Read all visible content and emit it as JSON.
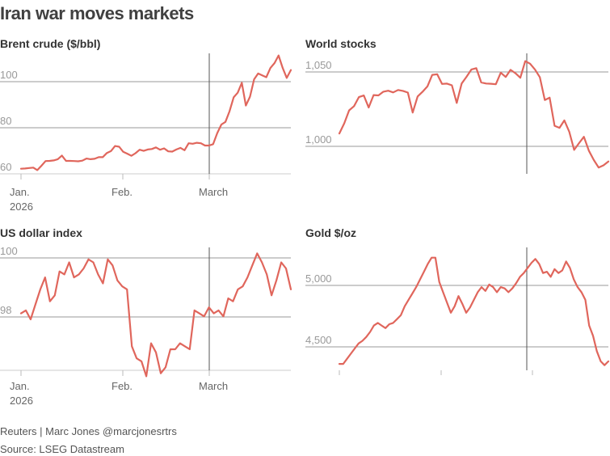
{
  "title": "Iran war moves markets",
  "footer": {
    "credit": "Reuters | Marc Jones @marcjonesrtrs",
    "source": "Source: LSEG Datastream"
  },
  "colors": {
    "line": "#e0665c",
    "grid": "#999999",
    "marker": "#555555"
  },
  "chart_data": [
    {
      "type": "line",
      "title": "Brent crude ($/bbl)",
      "yticks": [
        60,
        80,
        100
      ],
      "ylim": [
        59,
        111
      ],
      "x_labels": [
        "Jan.",
        "2026",
        "Feb.",
        "March"
      ],
      "event_marker": "March 1",
      "values": [
        61.2,
        61.3,
        61.5,
        61.7,
        60.6,
        62.5,
        64.5,
        64.6,
        64.8,
        65.3,
        66.9,
        64.6,
        64.6,
        64.5,
        64.4,
        64.7,
        65.6,
        65.3,
        65.5,
        66.2,
        66.2,
        68,
        68.8,
        71,
        70.7,
        68.5,
        67.7,
        66.8,
        67.9,
        69.4,
        68.9,
        69.5,
        69.7,
        70.4,
        69.4,
        70,
        68.7,
        68.6,
        69.5,
        70.2,
        69.2,
        72.2,
        72,
        72.4,
        72.2,
        71.2,
        71.2,
        71.8,
        76.6,
        80.3,
        81.4,
        86,
        92,
        94,
        98.3,
        88.5,
        92.3,
        99.8,
        102.3,
        101.5,
        100.7,
        104.7,
        106.8,
        110.1,
        104.7,
        100.4,
        103.8
      ]
    },
    {
      "type": "line",
      "title": "World stocks",
      "yticks": [
        1000,
        1050
      ],
      "ylim": [
        985,
        1063
      ],
      "x_labels": [],
      "event_marker": "March 1",
      "values": [
        1011.1,
        1017.7,
        1026.1,
        1028.8,
        1034.7,
        1035.7,
        1027.9,
        1036,
        1035.8,
        1038.2,
        1038.8,
        1037.7,
        1039.3,
        1038.7,
        1037.6,
        1024.7,
        1035.1,
        1038.1,
        1041.6,
        1049.1,
        1049.5,
        1043.2,
        1043.4,
        1042.3,
        1030.9,
        1043.5,
        1047.8,
        1052.6,
        1053.4,
        1044.2,
        1043.5,
        1043.3,
        1043,
        1050.5,
        1047.7,
        1052.3,
        1050.1,
        1047.2,
        1058,
        1056.3,
        1052.5,
        1047.5,
        1032.8,
        1034.3,
        1016.1,
        1014.8,
        1019.6,
        1012.2,
        1000.5,
        1004.9,
        1009,
        1000,
        994.1,
        989.1,
        990.5,
        993
      ]
    },
    {
      "type": "line",
      "title": "US dollar index",
      "yticks": [
        98,
        100
      ],
      "ylim": [
        96.4,
        100.5
      ],
      "x_labels": [
        "Jan.",
        "2026",
        "Feb.",
        "March"
      ],
      "event_marker": "March 1",
      "values": [
        98.3,
        98.4,
        98.1,
        98.6,
        99.1,
        99.5,
        98.7,
        98.9,
        99.7,
        99.6,
        100,
        99.5,
        99.6,
        99.8,
        100.1,
        100,
        99.6,
        99.3,
        100.1,
        99.9,
        99.4,
        99.2,
        99.1,
        97.2,
        96.8,
        96.7,
        96.2,
        97.3,
        97,
        96.3,
        96.5,
        97.1,
        97.1,
        97.3,
        97.2,
        97.1,
        98.4,
        98.3,
        98.2,
        98.5,
        98.3,
        98.4,
        98.2,
        98.8,
        98.7,
        99.1,
        99.2,
        99.5,
        99.9,
        100.3,
        100,
        99.6,
        98.9,
        99.4,
        100,
        99.8,
        99.1
      ]
    },
    {
      "type": "line",
      "title": "Gold $/oz",
      "yticks": [
        4500,
        5000
      ],
      "ylim": [
        4350,
        5310
      ],
      "x_labels": [],
      "event_marker": "March 1",
      "values": [
        4400,
        4400,
        4440,
        4480,
        4520,
        4560,
        4580,
        4610,
        4650,
        4700,
        4720,
        4700,
        4680,
        4710,
        4720,
        4750,
        4780,
        4850,
        4900,
        4950,
        5000,
        5060,
        5120,
        5180,
        5230,
        5230,
        5040,
        4960,
        4880,
        4800,
        4850,
        4930,
        4870,
        4800,
        4840,
        4900,
        4960,
        5000,
        4970,
        5020,
        5000,
        4960,
        5000,
        4990,
        4960,
        4990,
        5030,
        5080,
        5110,
        5150,
        5190,
        5220,
        5180,
        5110,
        5120,
        5080,
        5140,
        5110,
        5130,
        5200,
        5150,
        5060,
        5000,
        4960,
        4900,
        4700,
        4620,
        4500,
        4420,
        4390,
        4420
      ]
    }
  ]
}
